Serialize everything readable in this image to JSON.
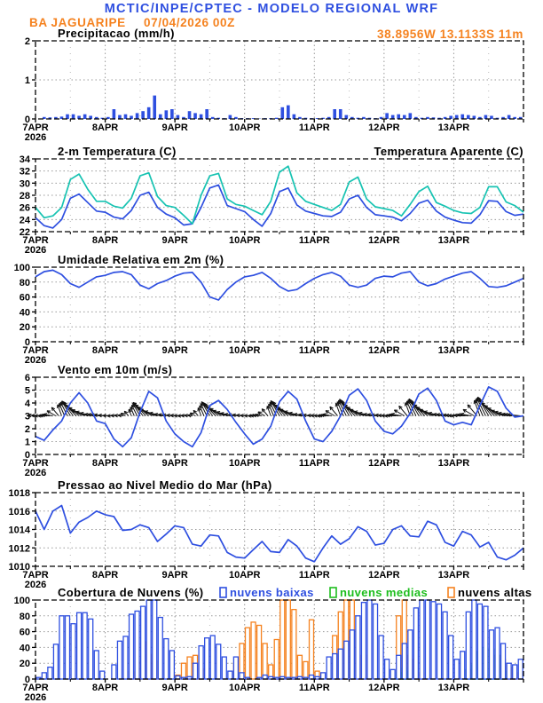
{
  "header": {
    "title": "MCTIC/INPE/CPTEC - MODELO REGIONAL WRF",
    "station": "BA JAGUARIPE",
    "run": "07/04/2026 00Z",
    "coords": "38.8956W 13.1133S 11m"
  },
  "x_axis": {
    "day_labels": [
      "7APR",
      "8APR",
      "9APR",
      "10APR",
      "11APR",
      "12APR",
      "13APR"
    ],
    "year_label": "2026"
  },
  "colors": {
    "blue": "#2e4fe0",
    "cyan": "#17c3b2",
    "orange": "#f5821f",
    "green": "#1dbe1d",
    "black": "#000000",
    "grid": "#999999"
  },
  "chart_data": [
    {
      "panel": "precipitation",
      "type": "bar",
      "title": "Precipitacao (mm/h)",
      "ylim": [
        0,
        2
      ],
      "yticks": [
        0,
        1,
        2
      ],
      "step_hours": 2,
      "values": [
        0,
        0.05,
        0.04,
        0.05,
        0.06,
        0.12,
        0.12,
        0.08,
        0.12,
        0.08,
        0.05,
        0.03,
        0.05,
        0.25,
        0.1,
        0.12,
        0.08,
        0.15,
        0.2,
        0.3,
        0.6,
        0.12,
        0.22,
        0.25,
        0.1,
        0.05,
        0.2,
        0.15,
        0.12,
        0.25,
        0.05,
        0.03,
        0.02,
        0.1,
        0.05,
        0.02,
        0.02,
        0.02,
        0.01,
        0.02,
        0.02,
        0.03,
        0.3,
        0.35,
        0.12,
        0.05,
        0.03,
        0.02,
        0.02,
        0.03,
        0.05,
        0.25,
        0.25,
        0.1,
        0.05,
        0.03,
        0.05,
        0.03,
        0.02,
        0.05,
        0.15,
        0.1,
        0.12,
        0.1,
        0.15,
        0.05,
        0.03,
        0.05,
        0.04,
        0.03,
        0.05,
        0.08,
        0.1,
        0.12,
        0.1,
        0.08,
        0.05,
        0.1,
        0.08,
        0.03,
        0.05,
        0.1,
        0.05,
        0.05
      ]
    },
    {
      "panel": "temperature",
      "type": "line",
      "title": "2-m Temperatura (C)",
      "legend_right": "Temperatura Aparente (C)",
      "ylim": [
        22,
        34
      ],
      "yticks": [
        22,
        24,
        26,
        28,
        30,
        32,
        34
      ],
      "step_hours": 3,
      "series": [
        {
          "name": "2-m Temperatura",
          "color_key": "blue",
          "values": [
            24.3,
            23.0,
            22.6,
            24.0,
            27.5,
            28.2,
            26.8,
            25.4,
            25.2,
            24.4,
            24.1,
            25.5,
            28.0,
            28.5,
            26.0,
            24.9,
            24.3,
            23.1,
            23.3,
            26.0,
            29.2,
            29.7,
            26.3,
            25.8,
            25.3,
            24.0,
            22.9,
            25.0,
            28.6,
            29.2,
            26.4,
            25.4,
            25.0,
            24.6,
            24.5,
            25.2,
            27.4,
            28.0,
            26.0,
            24.8,
            24.6,
            24.4,
            23.8,
            25.0,
            26.7,
            27.2,
            25.4,
            24.4,
            23.9,
            23.5,
            23.4,
            24.8,
            27.1,
            27.0,
            25.3,
            24.7,
            24.9
          ]
        },
        {
          "name": "Temperatura Aparente",
          "color_key": "cyan",
          "values": [
            26.0,
            24.3,
            24.6,
            26.0,
            30.6,
            31.5,
            29.0,
            27.0,
            27.0,
            26.2,
            25.9,
            27.5,
            31.2,
            31.7,
            27.8,
            26.3,
            26.0,
            24.7,
            23.3,
            28.0,
            31.2,
            31.6,
            27.4,
            26.5,
            26.2,
            25.5,
            24.8,
            27.0,
            31.8,
            32.8,
            28.4,
            27.0,
            26.5,
            26.0,
            25.5,
            26.5,
            30.2,
            31.0,
            27.4,
            26.1,
            25.8,
            25.5,
            24.6,
            26.5,
            28.6,
            29.5,
            26.8,
            26.2,
            25.5,
            25.1,
            25.0,
            26.0,
            29.4,
            29.4,
            26.9,
            26.3,
            25.2
          ]
        }
      ]
    },
    {
      "panel": "relative-humidity",
      "type": "line",
      "title": "Umidade Relativa em 2m (%)",
      "ylim": [
        0,
        100
      ],
      "yticks": [
        0,
        20,
        40,
        60,
        80,
        100
      ],
      "step_hours": 3,
      "series": [
        {
          "name": "Umidade Relativa",
          "color_key": "blue",
          "values": [
            87,
            94,
            96,
            90,
            78,
            73,
            80,
            87,
            89,
            93,
            94,
            90,
            76,
            71,
            78,
            82,
            88,
            92,
            93,
            80,
            60,
            56,
            70,
            80,
            87,
            89,
            93,
            85,
            74,
            68,
            70,
            78,
            85,
            90,
            93,
            88,
            76,
            73,
            76,
            85,
            88,
            87,
            92,
            94,
            80,
            75,
            78,
            84,
            88,
            92,
            94,
            85,
            74,
            73,
            75,
            80,
            85
          ]
        }
      ]
    },
    {
      "panel": "wind-10m",
      "type": "line-arrows",
      "title": "Vento em 10m (m/s)",
      "ylim": [
        0,
        6
      ],
      "yticks": [
        0,
        1,
        2,
        3,
        4,
        5,
        6
      ],
      "step_hours": 3,
      "arrow_baseline": 3,
      "speed": [
        1.4,
        1.1,
        1.9,
        2.6,
        4.0,
        4.8,
        4.0,
        2.6,
        2.4,
        1.2,
        0.6,
        1.3,
        3.3,
        4.9,
        4.4,
        2.6,
        1.6,
        1.0,
        0.6,
        1.7,
        3.8,
        4.2,
        3.5,
        2.5,
        1.6,
        0.8,
        1.2,
        2.2,
        4.1,
        4.9,
        4.3,
        2.6,
        1.2,
        1.0,
        1.8,
        3.0,
        4.6,
        5.1,
        4.2,
        2.6,
        1.8,
        1.6,
        2.2,
        3.2,
        4.7,
        5.15,
        4.2,
        2.6,
        2.3,
        2.5,
        2.3,
        3.8,
        5.25,
        4.9,
        3.6,
        2.9,
        3.0
      ],
      "dirs_deg": [
        175,
        180,
        170,
        110,
        120,
        140,
        160,
        172,
        175,
        180,
        170,
        110,
        120,
        140,
        160,
        172,
        175,
        180,
        170,
        110,
        120,
        140,
        160,
        172,
        175,
        180,
        170,
        110,
        120,
        140,
        160,
        172,
        175,
        180,
        170,
        110,
        120,
        140,
        160,
        172,
        175,
        180,
        170,
        110,
        120,
        140,
        160,
        172,
        175,
        180,
        170,
        110,
        120,
        140,
        160,
        172,
        175
      ]
    },
    {
      "panel": "mslp",
      "type": "line",
      "title": "Pressao ao Nivel Medio do Mar (hPa)",
      "ylim": [
        1010,
        1018
      ],
      "yticks": [
        1010,
        1012,
        1014,
        1016,
        1018
      ],
      "step_hours": 3,
      "series": [
        {
          "name": "Pressao",
          "color_key": "blue",
          "values": [
            1016.0,
            1014.0,
            1016.0,
            1016.6,
            1013.6,
            1014.8,
            1015.3,
            1016.0,
            1015.6,
            1015.4,
            1013.9,
            1014.0,
            1014.5,
            1014.2,
            1012.7,
            1013.5,
            1014.4,
            1014.2,
            1012.4,
            1012.2,
            1013.4,
            1013.3,
            1011.5,
            1011.0,
            1010.9,
            1011.8,
            1012.7,
            1011.6,
            1011.5,
            1012.9,
            1012.2,
            1010.9,
            1010.5,
            1012.0,
            1013.3,
            1012.4,
            1013.0,
            1014.3,
            1013.8,
            1012.3,
            1012.5,
            1014.0,
            1014.4,
            1013.3,
            1013.2,
            1014.9,
            1014.5,
            1012.6,
            1012.2,
            1013.8,
            1013.4,
            1012.1,
            1012.6,
            1011.0,
            1010.7,
            1011.2,
            1012.0
          ]
        }
      ]
    },
    {
      "panel": "cloud-cover",
      "type": "outline-bar",
      "title": "Cobertura de Nuvens (%)",
      "ylim": [
        0,
        100
      ],
      "yticks": [
        0,
        20,
        40,
        60,
        80,
        100
      ],
      "step_hours": 2,
      "legend": [
        {
          "label": "nuvens baixas",
          "color_key": "blue"
        },
        {
          "label": "nuvens medias",
          "color_key": "green"
        },
        {
          "label": "nuvens altas",
          "color_key": "orange"
        }
      ],
      "series": [
        {
          "name": "nuvens altas",
          "color_key": "orange",
          "values": [
            0,
            0,
            0,
            0,
            0,
            0,
            0,
            0,
            0,
            0,
            0,
            0,
            0,
            0,
            0,
            0,
            9,
            23,
            47,
            31,
            23,
            0,
            0,
            0,
            5,
            20,
            28,
            30,
            13,
            0,
            0,
            0,
            0,
            0,
            20,
            45,
            65,
            72,
            68,
            45,
            18,
            50,
            100,
            100,
            88,
            30,
            22,
            75,
            10,
            0,
            0,
            55,
            85,
            100,
            100,
            62,
            30,
            0,
            0,
            0,
            0,
            0,
            80,
            100,
            30,
            25,
            8,
            0,
            0,
            0,
            0,
            0,
            0,
            0,
            0,
            0,
            0,
            0,
            0,
            30,
            25,
            15,
            8,
            0
          ]
        },
        {
          "name": "nuvens medias",
          "color_key": "green",
          "values": [
            0,
            0,
            0,
            0,
            0,
            0,
            0,
            0,
            0,
            0,
            0,
            0,
            0,
            0,
            0,
            0,
            0,
            0,
            0,
            0,
            0,
            0,
            0,
            0,
            0,
            0,
            0,
            0,
            0,
            0,
            0,
            0,
            0,
            0,
            0,
            0,
            0,
            0,
            0,
            0,
            0,
            0,
            0,
            0,
            0,
            0,
            0,
            0,
            0,
            0,
            0,
            0,
            0,
            0,
            0,
            0,
            0,
            0,
            0,
            0,
            0,
            0,
            8,
            14,
            10,
            0,
            0,
            0,
            0,
            0,
            0,
            0,
            0,
            0,
            12,
            18,
            35,
            40,
            38,
            30,
            10,
            0,
            0,
            0
          ]
        },
        {
          "name": "nuvens baixas",
          "color_key": "blue",
          "values": [
            2,
            8,
            15,
            44,
            80,
            80,
            70,
            84,
            84,
            76,
            36,
            10,
            0,
            18,
            48,
            54,
            82,
            86,
            92,
            100,
            100,
            78,
            51,
            36,
            4,
            2,
            3,
            20,
            42,
            52,
            55,
            44,
            28,
            10,
            28,
            8,
            2,
            0,
            2,
            5,
            3,
            2,
            3,
            2,
            2,
            3,
            2,
            5,
            3,
            8,
            28,
            32,
            38,
            48,
            62,
            80,
            97,
            100,
            95,
            55,
            25,
            12,
            30,
            45,
            62,
            90,
            100,
            100,
            98,
            95,
            85,
            55,
            25,
            35,
            85,
            100,
            95,
            92,
            62,
            65,
            45,
            20,
            18,
            25
          ]
        }
      ]
    }
  ]
}
